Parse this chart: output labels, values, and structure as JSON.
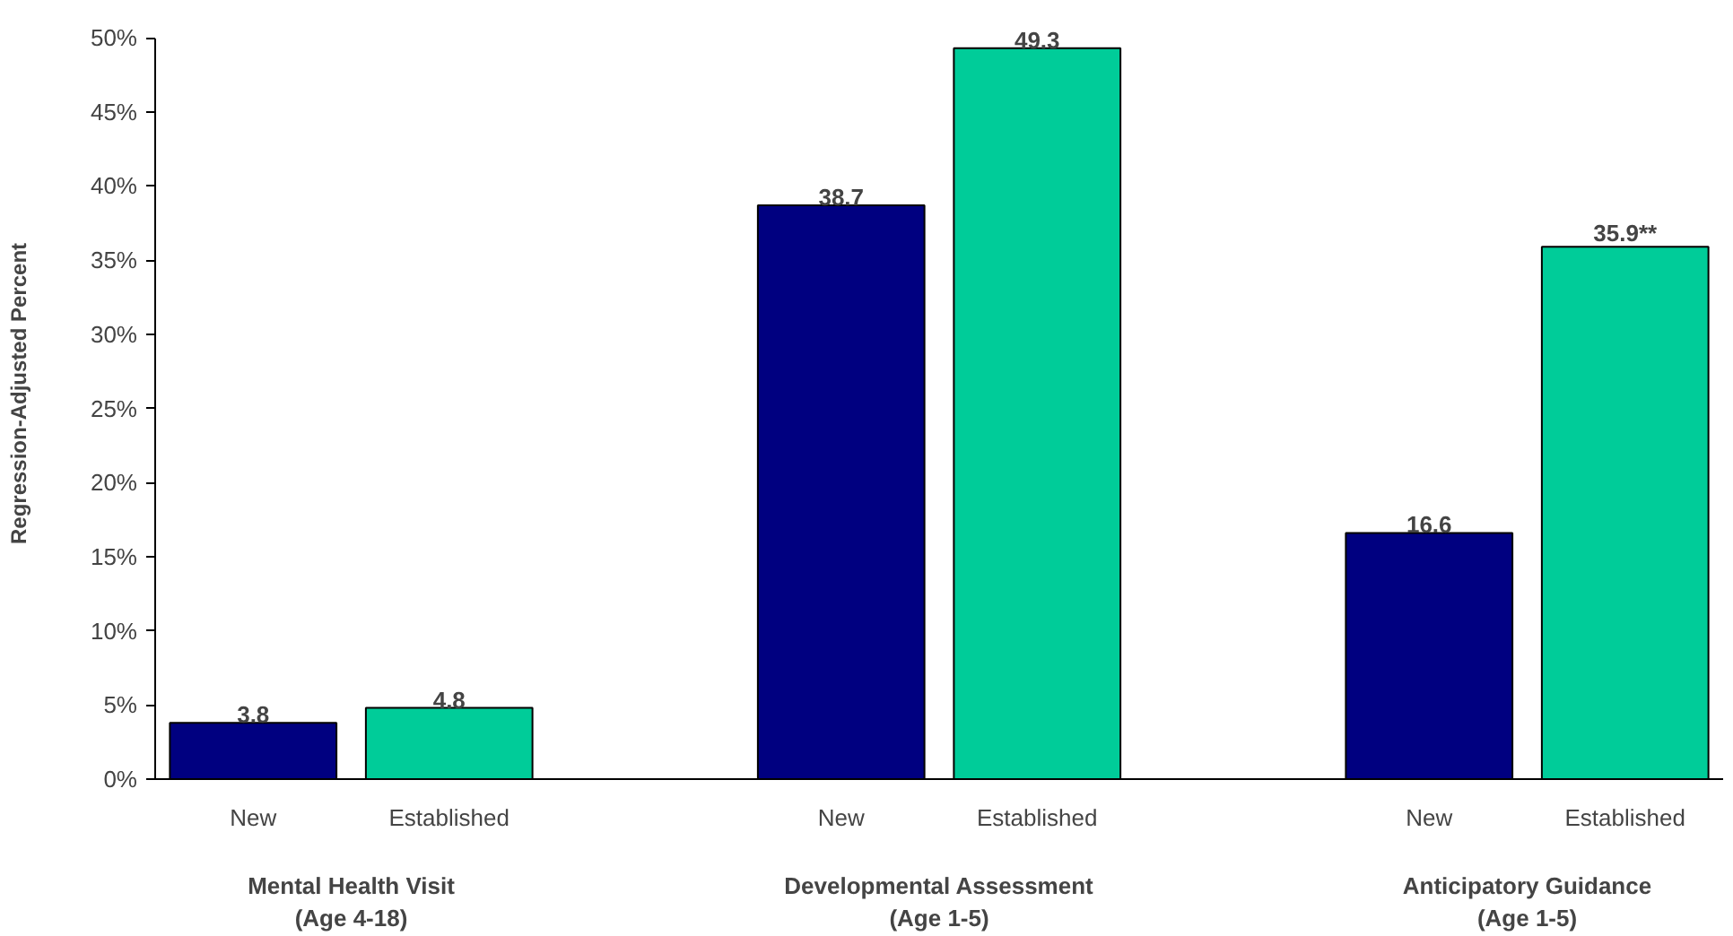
{
  "chart_data": {
    "type": "bar",
    "ylabel": "Regression-Adjusted Percent",
    "categories": [
      "New",
      "Established",
      null,
      "New",
      "Established",
      null,
      "New",
      "Established"
    ],
    "values": [
      3.8,
      4.8,
      null,
      38.7,
      49.3,
      null,
      16.6,
      35.9
    ],
    "colors": [
      "#000080",
      "#00cc99",
      null,
      "#000080",
      "#00cc99",
      null,
      "#000080",
      "#00cc99"
    ],
    "value_labels": [
      "3.8",
      "4.8",
      null,
      "38.7",
      "49.3",
      null,
      "16.6",
      "35.9**"
    ],
    "ylim": [
      0,
      50
    ],
    "yticks": [
      {
        "value": 0,
        "label": "0%"
      },
      {
        "value": 5,
        "label": "5%"
      },
      {
        "value": 10,
        "label": "10%"
      },
      {
        "value": 15,
        "label": "15%"
      },
      {
        "value": 20,
        "label": "20%"
      },
      {
        "value": 25,
        "label": "25%"
      },
      {
        "value": 30,
        "label": "30%"
      },
      {
        "value": 35,
        "label": "35%"
      },
      {
        "value": 40,
        "label": "40%"
      },
      {
        "value": 45,
        "label": "45%"
      },
      {
        "value": 50,
        "label": "50%"
      }
    ],
    "annotations": [
      "Mental Health Visit\n(Age 4-18)",
      "Developmental Assessment\n(Age 1-5)",
      "Anticipatory Guidance\n(Age 1-5)"
    ],
    "grid": false
  }
}
